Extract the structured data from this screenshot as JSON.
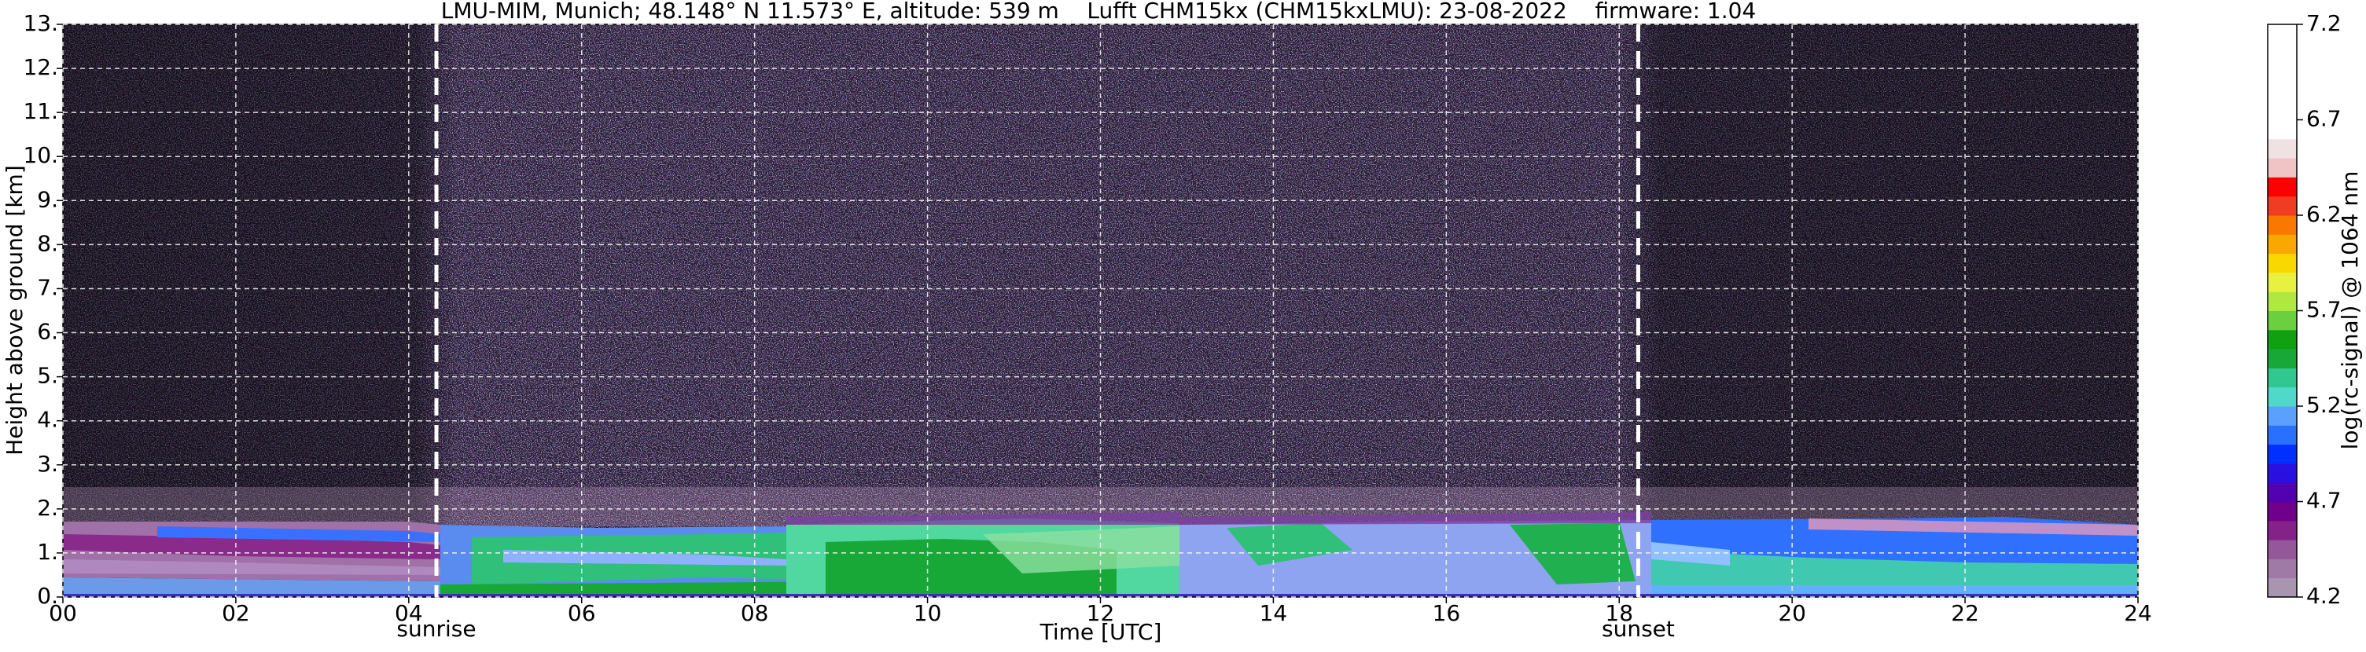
{
  "chart_data": {
    "type": "heatmap",
    "title": "LMU-MIM, Munich; 48.148° N 11.573° E, altitude: 539 m    Lufft CHM15kx (CHM15kxLMU): 23-08-2022    firmware: 1.04",
    "x_label": "Time [UTC]",
    "y_label": "Height above ground [km]",
    "xlim": [
      0,
      24
    ],
    "xticks": [
      {
        "value": 0,
        "label": "00"
      },
      {
        "value": 2,
        "label": "02"
      },
      {
        "value": 4,
        "label": "04"
      },
      {
        "value": 6,
        "label": "06"
      },
      {
        "value": 8,
        "label": "08"
      },
      {
        "value": 10,
        "label": "10"
      },
      {
        "value": 12,
        "label": "12"
      },
      {
        "value": 14,
        "label": "14"
      },
      {
        "value": 16,
        "label": "16"
      },
      {
        "value": 18,
        "label": "18"
      },
      {
        "value": 20,
        "label": "20"
      },
      {
        "value": 22,
        "label": "22"
      },
      {
        "value": 24,
        "label": "24"
      }
    ],
    "ylim": [
      0,
      13
    ],
    "yticks": [
      {
        "value": 0,
        "label": "0."
      },
      {
        "value": 1,
        "label": "1."
      },
      {
        "value": 2,
        "label": "2."
      },
      {
        "value": 3,
        "label": "3."
      },
      {
        "value": 4,
        "label": "4."
      },
      {
        "value": 5,
        "label": "5."
      },
      {
        "value": 6,
        "label": "6."
      },
      {
        "value": 7,
        "label": "7."
      },
      {
        "value": 8,
        "label": "8."
      },
      {
        "value": 9,
        "label": "9."
      },
      {
        "value": 10,
        "label": "10."
      },
      {
        "value": 11,
        "label": "11."
      },
      {
        "value": 12,
        "label": "12."
      },
      {
        "value": 13,
        "label": "13."
      }
    ],
    "grid": true,
    "events": [
      {
        "label": "sunrise",
        "x": 4.32
      },
      {
        "label": "sunset",
        "x": 18.22
      }
    ],
    "colorbar": {
      "label": "log(rc-signal) @ 1064 nm",
      "lim": [
        4.2,
        7.2
      ],
      "ticks": [
        4.2,
        4.7,
        5.2,
        5.7,
        6.2,
        6.7,
        7.2
      ],
      "colors": [
        "#a896b0",
        "#a07aa6",
        "#94589a",
        "#84228a",
        "#70008c",
        "#5200b0",
        "#2a10e0",
        "#0030ff",
        "#2a70ff",
        "#5aa0ff",
        "#50d8c8",
        "#30c890",
        "#18a838",
        "#10a010",
        "#6ad040",
        "#b0e840",
        "#e8f040",
        "#f8d800",
        "#f8a800",
        "#f87800",
        "#f03c20",
        "#ff0000",
        "#f0c4c4",
        "#f0e2e2",
        "#ffffff",
        "#ffffff",
        "#ffffff",
        "#ffffff",
        "#ffffff",
        "#ffffff"
      ]
    }
  }
}
